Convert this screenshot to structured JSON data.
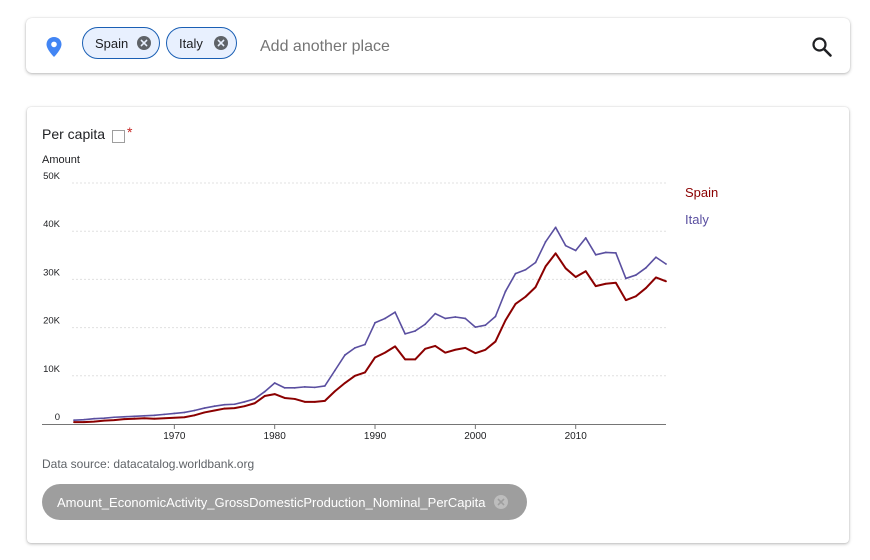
{
  "search": {
    "placeholder": "Add another place",
    "chips": [
      {
        "label": "Spain"
      },
      {
        "label": "Italy"
      }
    ]
  },
  "chart_card": {
    "per_capita_label": "Per capita",
    "required_mark": "*",
    "source_text": "Data source: datacatalog.worldbank.org",
    "variable_chip": "Amount_EconomicActivity_GrossDomesticProduction_Nominal_PerCapita"
  },
  "colors": {
    "chip_border": "#1a5fb4",
    "chip_bg": "#e8f0fe",
    "place_icon": "#4285f4",
    "spain": "#8b0000",
    "italy": "#5a4fa0"
  },
  "icons": {
    "place": "location-pin-icon",
    "chip_remove": "close-circle-icon",
    "search": "magnifier-icon"
  },
  "chart_data": {
    "type": "line",
    "ylabel": "Amount",
    "ylim": [
      0,
      50000
    ],
    "y_ticks": [
      0,
      10000,
      20000,
      30000,
      40000,
      50000
    ],
    "y_tick_labels": [
      "0",
      "10K",
      "20K",
      "30K",
      "40K",
      "50K"
    ],
    "x_ticks": [
      1970,
      1980,
      1990,
      2000,
      2010
    ],
    "x_tick_labels": [
      "1970",
      "1980",
      "1990",
      "2000",
      "2010"
    ],
    "xlim": [
      1960,
      2019
    ],
    "grid": true,
    "legend_position": "right",
    "x": [
      1960,
      1961,
      1962,
      1963,
      1964,
      1965,
      1966,
      1967,
      1968,
      1969,
      1970,
      1971,
      1972,
      1973,
      1974,
      1975,
      1976,
      1977,
      1978,
      1979,
      1980,
      1981,
      1982,
      1983,
      1984,
      1985,
      1986,
      1987,
      1988,
      1989,
      1990,
      1991,
      1992,
      1993,
      1994,
      1995,
      1996,
      1997,
      1998,
      1999,
      2000,
      2001,
      2002,
      2003,
      2004,
      2005,
      2006,
      2007,
      2008,
      2009,
      2010,
      2011,
      2012,
      2013,
      2014,
      2015,
      2016,
      2017,
      2018,
      2019
    ],
    "series": [
      {
        "name": "Spain",
        "color": "#8b0000",
        "values": [
          400,
          400,
          500,
          700,
          800,
          1000,
          1100,
          1200,
          1100,
          1200,
          1300,
          1400,
          1800,
          2400,
          2800,
          3200,
          3300,
          3700,
          4300,
          5800,
          6200,
          5400,
          5200,
          4600,
          4600,
          4800,
          6800,
          8500,
          10000,
          10700,
          13800,
          14800,
          16100,
          13400,
          13400,
          15600,
          16200,
          14800,
          15400,
          15800,
          14700,
          15400,
          17100,
          21500,
          24900,
          26400,
          28400,
          32700,
          35400,
          32300,
          30500,
          31700,
          28600,
          29100,
          29300,
          25700,
          26500,
          28200,
          30400,
          29600
        ]
      },
      {
        "name": "Italy",
        "color": "#5a4fa0",
        "values": [
          800,
          900,
          1100,
          1200,
          1400,
          1500,
          1600,
          1700,
          1800,
          2000,
          2200,
          2400,
          2800,
          3300,
          3700,
          4000,
          4100,
          4600,
          5200,
          6700,
          8500,
          7500,
          7500,
          7700,
          7600,
          7900,
          11100,
          14300,
          15800,
          16500,
          21000,
          21900,
          23200,
          18700,
          19300,
          20700,
          22900,
          21900,
          22200,
          21900,
          20100,
          20500,
          22300,
          27500,
          31200,
          32000,
          33500,
          37800,
          40800,
          37000,
          36000,
          38600,
          35100,
          35600,
          35500,
          30200,
          30900,
          32400,
          34600,
          33200
        ]
      }
    ]
  }
}
